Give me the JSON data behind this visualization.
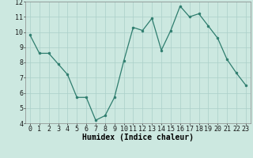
{
  "x": [
    0,
    1,
    2,
    3,
    4,
    5,
    6,
    7,
    8,
    9,
    10,
    11,
    12,
    13,
    14,
    15,
    16,
    17,
    18,
    19,
    20,
    21,
    22,
    23
  ],
  "y": [
    9.8,
    8.6,
    8.6,
    7.9,
    7.2,
    5.7,
    5.7,
    4.2,
    4.5,
    5.7,
    8.1,
    10.3,
    10.1,
    10.9,
    8.8,
    10.1,
    11.7,
    11.0,
    11.2,
    10.4,
    9.6,
    8.2,
    7.3,
    6.5
  ],
  "line_color": "#2e7d6e",
  "marker_color": "#2e7d6e",
  "bg_color": "#cce8e0",
  "grid_color": "#aacfc8",
  "xlabel": "Humidex (Indice chaleur)",
  "xlim_min": -0.5,
  "xlim_max": 23.5,
  "ylim_min": 4,
  "ylim_max": 12,
  "yticks": [
    4,
    5,
    6,
    7,
    8,
    9,
    10,
    11,
    12
  ],
  "xticks": [
    0,
    1,
    2,
    3,
    4,
    5,
    6,
    7,
    8,
    9,
    10,
    11,
    12,
    13,
    14,
    15,
    16,
    17,
    18,
    19,
    20,
    21,
    22,
    23
  ],
  "xlabel_fontsize": 7,
  "tick_fontsize": 6,
  "linewidth": 0.9,
  "markersize": 2.0
}
